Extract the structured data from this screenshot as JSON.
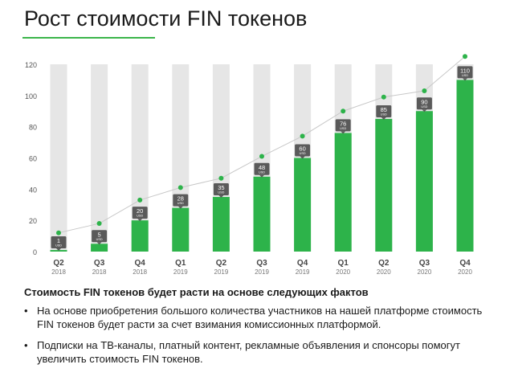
{
  "header": {
    "title": "Рост стоимости FIN токенов"
  },
  "chart_data": {
    "type": "bar",
    "categories": [
      {
        "quarter": "Q2",
        "year": "2018"
      },
      {
        "quarter": "Q3",
        "year": "2018"
      },
      {
        "quarter": "Q4",
        "year": "2018"
      },
      {
        "quarter": "Q1",
        "year": "2019"
      },
      {
        "quarter": "Q2",
        "year": "2019"
      },
      {
        "quarter": "Q3",
        "year": "2019"
      },
      {
        "quarter": "Q4",
        "year": "2019"
      },
      {
        "quarter": "Q1",
        "year": "2020"
      },
      {
        "quarter": "Q2",
        "year": "2020"
      },
      {
        "quarter": "Q3",
        "year": "2020"
      },
      {
        "quarter": "Q4",
        "year": "2020"
      }
    ],
    "series": [
      {
        "values": [
          1,
          5,
          20,
          28,
          35,
          48,
          60,
          76,
          85,
          90,
          110
        ],
        "unit": "USD",
        "color": "#2db34a"
      },
      {
        "values": [
          12,
          18,
          33,
          41,
          47,
          61,
          74,
          90,
          99,
          103,
          125
        ],
        "color": "#2db34a",
        "style": "line with dots"
      }
    ],
    "background_bar_max": 120,
    "background_bar_color": "#e6e6e6",
    "label_box_color": "#5a5a5a",
    "ylim": [
      0,
      120
    ],
    "yticks": [
      0,
      20,
      40,
      60,
      80,
      100,
      120
    ],
    "grid": false,
    "title": "",
    "xlabel": "",
    "ylabel": ""
  },
  "facts": {
    "heading": "Стоимость FIN токенов будет расти на основе следующих фактов",
    "bullet_symbol": "•",
    "items": [
      "На основе приобретения большого количества участников на нашей платформе стоимость FIN токенов будет расти за счет взимания комиссионных платформой.",
      "Подписки на ТВ-каналы, платный контент, рекламные объявления и спонсоры помогут увеличить стоимость FIN токенов."
    ]
  }
}
